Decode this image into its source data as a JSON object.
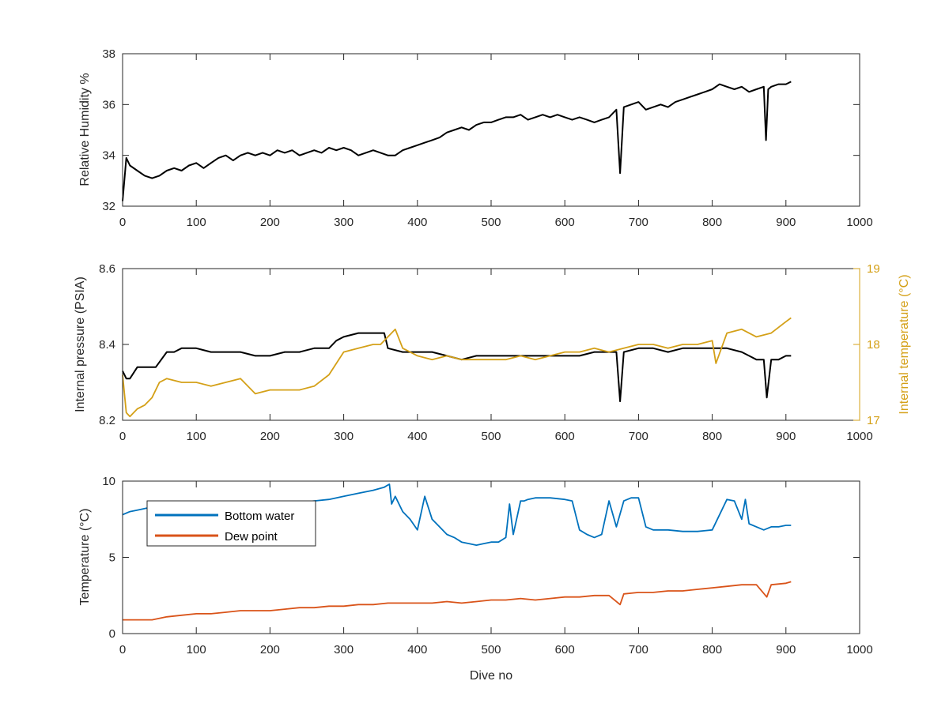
{
  "chart_data": [
    {
      "type": "line",
      "xlabel": "",
      "ylabel": "Relative Humidity %",
      "xlim": [
        0,
        1000
      ],
      "ylim": [
        32,
        38
      ],
      "xticks": [
        0,
        100,
        200,
        300,
        400,
        500,
        600,
        700,
        800,
        900,
        1000
      ],
      "yticks": [
        32,
        34,
        36,
        38
      ],
      "grid": false,
      "series": [
        {
          "name": "",
          "color": "#000000",
          "x": [
            0,
            5,
            10,
            20,
            30,
            40,
            50,
            60,
            70,
            80,
            90,
            100,
            110,
            120,
            130,
            140,
            150,
            160,
            170,
            180,
            190,
            200,
            210,
            220,
            230,
            240,
            250,
            260,
            270,
            280,
            290,
            300,
            310,
            320,
            330,
            340,
            350,
            360,
            370,
            380,
            390,
            400,
            410,
            420,
            430,
            440,
            450,
            460,
            470,
            480,
            490,
            500,
            510,
            520,
            530,
            540,
            550,
            560,
            570,
            580,
            590,
            600,
            610,
            620,
            630,
            640,
            650,
            660,
            670,
            675,
            680,
            690,
            700,
            710,
            720,
            730,
            740,
            750,
            760,
            770,
            780,
            790,
            800,
            810,
            820,
            830,
            840,
            850,
            860,
            870,
            873,
            876,
            880,
            890,
            900,
            907
          ],
          "y": [
            32.2,
            33.9,
            33.6,
            33.4,
            33.2,
            33.1,
            33.2,
            33.4,
            33.5,
            33.4,
            33.6,
            33.7,
            33.5,
            33.7,
            33.9,
            34.0,
            33.8,
            34.0,
            34.1,
            34.0,
            34.1,
            34.0,
            34.2,
            34.1,
            34.2,
            34.0,
            34.1,
            34.2,
            34.1,
            34.3,
            34.2,
            34.3,
            34.2,
            34.0,
            34.1,
            34.2,
            34.1,
            34.0,
            34.0,
            34.2,
            34.3,
            34.4,
            34.5,
            34.6,
            34.7,
            34.9,
            35.0,
            35.1,
            35.0,
            35.2,
            35.3,
            35.3,
            35.4,
            35.5,
            35.5,
            35.6,
            35.4,
            35.5,
            35.6,
            35.5,
            35.6,
            35.5,
            35.4,
            35.5,
            35.4,
            35.3,
            35.4,
            35.5,
            35.8,
            33.3,
            35.9,
            36.0,
            36.1,
            35.8,
            35.9,
            36.0,
            35.9,
            36.1,
            36.2,
            36.3,
            36.4,
            36.5,
            36.6,
            36.8,
            36.7,
            36.6,
            36.7,
            36.5,
            36.6,
            36.7,
            34.6,
            36.6,
            36.7,
            36.8,
            36.8,
            36.9
          ]
        }
      ]
    },
    {
      "type": "line",
      "xlabel": "",
      "ylabel": "Internal pressure (PSIA)",
      "ylabel_right": "Internal temperature (°C)",
      "xlim": [
        0,
        1000
      ],
      "ylim": [
        8.2,
        8.6
      ],
      "ylim_right": [
        17,
        19
      ],
      "xticks": [
        0,
        100,
        200,
        300,
        400,
        500,
        600,
        700,
        800,
        900,
        1000
      ],
      "yticks": [
        8.2,
        8.4,
        8.6
      ],
      "yticks_right": [
        17,
        18,
        19
      ],
      "grid": false,
      "series": [
        {
          "name": "",
          "axis": "left",
          "color": "#000000",
          "x": [
            0,
            5,
            10,
            20,
            30,
            40,
            45,
            60,
            70,
            80,
            100,
            120,
            140,
            160,
            180,
            200,
            220,
            240,
            260,
            280,
            290,
            300,
            320,
            340,
            355,
            360,
            380,
            400,
            420,
            440,
            460,
            480,
            500,
            520,
            540,
            560,
            580,
            600,
            620,
            640,
            660,
            670,
            675,
            680,
            700,
            720,
            740,
            760,
            780,
            800,
            820,
            840,
            850,
            860,
            870,
            874,
            880,
            890,
            900,
            907
          ],
          "y": [
            8.33,
            8.31,
            8.31,
            8.34,
            8.34,
            8.34,
            8.34,
            8.38,
            8.38,
            8.39,
            8.39,
            8.38,
            8.38,
            8.38,
            8.37,
            8.37,
            8.38,
            8.38,
            8.39,
            8.39,
            8.41,
            8.42,
            8.43,
            8.43,
            8.43,
            8.39,
            8.38,
            8.38,
            8.38,
            8.37,
            8.36,
            8.37,
            8.37,
            8.37,
            8.37,
            8.37,
            8.37,
            8.37,
            8.37,
            8.38,
            8.38,
            8.38,
            8.25,
            8.38,
            8.39,
            8.39,
            8.38,
            8.39,
            8.39,
            8.39,
            8.39,
            8.38,
            8.37,
            8.36,
            8.36,
            8.26,
            8.36,
            8.36,
            8.37,
            8.37
          ]
        },
        {
          "name": "",
          "axis": "right",
          "color": "#D4A017",
          "x": [
            0,
            5,
            10,
            20,
            30,
            40,
            50,
            60,
            80,
            100,
            120,
            140,
            160,
            180,
            200,
            220,
            240,
            260,
            280,
            300,
            320,
            340,
            350,
            360,
            370,
            380,
            390,
            400,
            420,
            440,
            460,
            480,
            500,
            520,
            540,
            560,
            580,
            600,
            620,
            640,
            660,
            680,
            700,
            720,
            740,
            760,
            780,
            800,
            805,
            820,
            840,
            860,
            880,
            900,
            907
          ],
          "y": [
            17.6,
            17.1,
            17.05,
            17.15,
            17.2,
            17.3,
            17.5,
            17.55,
            17.5,
            17.5,
            17.45,
            17.5,
            17.55,
            17.35,
            17.4,
            17.4,
            17.4,
            17.45,
            17.6,
            17.9,
            17.95,
            18.0,
            18.0,
            18.1,
            18.2,
            17.95,
            17.9,
            17.85,
            17.8,
            17.85,
            17.8,
            17.8,
            17.8,
            17.8,
            17.85,
            17.8,
            17.85,
            17.9,
            17.9,
            17.95,
            17.9,
            17.95,
            18.0,
            18.0,
            17.95,
            18.0,
            18.0,
            18.05,
            17.75,
            18.15,
            18.2,
            18.1,
            18.15,
            18.3,
            18.35
          ]
        }
      ]
    },
    {
      "type": "line",
      "xlabel": "Dive no",
      "ylabel": "Temperature (°C)",
      "xlim": [
        0,
        1000
      ],
      "ylim": [
        0,
        10
      ],
      "xticks": [
        0,
        100,
        200,
        300,
        400,
        500,
        600,
        700,
        800,
        900,
        1000
      ],
      "yticks": [
        0,
        5,
        10
      ],
      "grid": false,
      "legend": "top-left",
      "series": [
        {
          "name": "Bottom water",
          "color": "#0072BD",
          "x": [
            0,
            10,
            20,
            40,
            60,
            80,
            100,
            120,
            140,
            160,
            180,
            200,
            220,
            240,
            260,
            280,
            300,
            320,
            340,
            355,
            362,
            365,
            370,
            380,
            390,
            400,
            410,
            420,
            430,
            440,
            450,
            460,
            470,
            480,
            490,
            500,
            510,
            520,
            525,
            530,
            540,
            545,
            550,
            560,
            580,
            600,
            610,
            620,
            630,
            640,
            650,
            660,
            670,
            680,
            690,
            700,
            710,
            720,
            740,
            760,
            780,
            800,
            820,
            830,
            840,
            845,
            850,
            860,
            870,
            880,
            890,
            900,
            907
          ],
          "y": [
            7.8,
            8.0,
            8.1,
            8.3,
            8.4,
            8.4,
            8.5,
            8.5,
            8.5,
            8.5,
            8.6,
            8.6,
            8.6,
            8.6,
            8.7,
            8.8,
            9.0,
            9.2,
            9.4,
            9.6,
            9.8,
            8.5,
            9.0,
            8.0,
            7.5,
            6.8,
            9.0,
            7.5,
            7.0,
            6.5,
            6.3,
            6.0,
            5.9,
            5.8,
            5.9,
            6.0,
            6.0,
            6.3,
            8.5,
            6.5,
            8.7,
            8.7,
            8.8,
            8.9,
            8.9,
            8.8,
            8.7,
            6.8,
            6.5,
            6.3,
            6.5,
            8.7,
            7.0,
            8.7,
            8.9,
            8.9,
            7.0,
            6.8,
            6.8,
            6.7,
            6.7,
            6.8,
            8.8,
            8.7,
            7.5,
            8.8,
            7.2,
            7.0,
            6.8,
            7.0,
            7.0,
            7.1,
            7.1
          ]
        },
        {
          "name": "Dew point",
          "color": "#D95319",
          "x": [
            0,
            20,
            40,
            60,
            80,
            100,
            120,
            140,
            160,
            180,
            200,
            220,
            240,
            260,
            280,
            300,
            320,
            340,
            360,
            380,
            400,
            420,
            440,
            460,
            480,
            500,
            520,
            540,
            560,
            580,
            600,
            620,
            640,
            660,
            675,
            680,
            700,
            720,
            740,
            760,
            780,
            800,
            820,
            840,
            860,
            874,
            880,
            900,
            907
          ],
          "y": [
            0.9,
            0.9,
            0.9,
            1.1,
            1.2,
            1.3,
            1.3,
            1.4,
            1.5,
            1.5,
            1.5,
            1.6,
            1.7,
            1.7,
            1.8,
            1.8,
            1.9,
            1.9,
            2.0,
            2.0,
            2.0,
            2.0,
            2.1,
            2.0,
            2.1,
            2.2,
            2.2,
            2.3,
            2.2,
            2.3,
            2.4,
            2.4,
            2.5,
            2.5,
            1.9,
            2.6,
            2.7,
            2.7,
            2.8,
            2.8,
            2.9,
            3.0,
            3.1,
            3.2,
            3.2,
            2.4,
            3.2,
            3.3,
            3.4
          ]
        }
      ]
    }
  ]
}
